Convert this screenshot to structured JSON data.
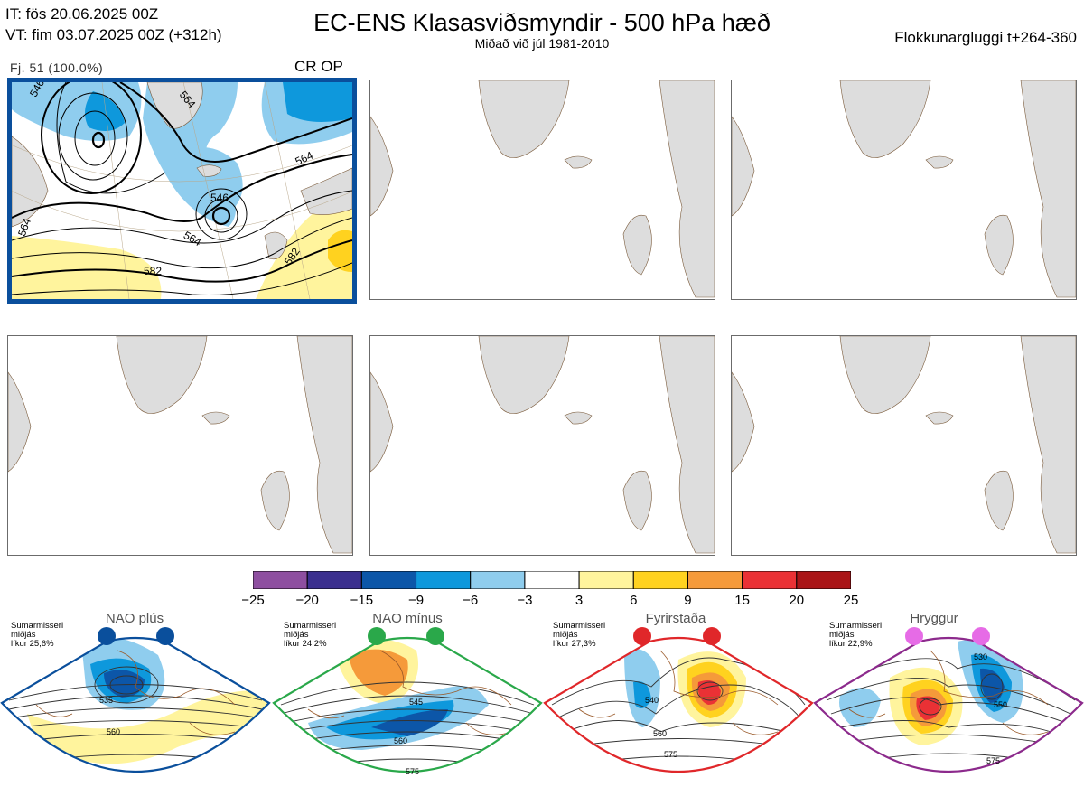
{
  "header": {
    "init_time": "IT: fös 20.06.2025 00Z",
    "valid_time": "VT: fim 03.07.2025 00Z  (+312h)",
    "title": "EC-ENS Klasasviðsmyndir - 500 hPa hæð",
    "subtitle": "Miðað við júl 1981-2010",
    "window": "Flokkunargluggi t+264-360"
  },
  "panel1": {
    "members": "Fj. 51 (100.0%)",
    "tag": "CR OP",
    "contour_labels": [
      "546",
      "564",
      "546",
      "564",
      "564",
      "564",
      "582",
      "582"
    ]
  },
  "colorbar": {
    "colors": [
      "#8e4fa0",
      "#3b2f8f",
      "#0c56a8",
      "#0e98dc",
      "#8fcdee",
      "#ffffff",
      "#fff49d",
      "#ffd21f",
      "#f59a3a",
      "#ea3135",
      "#aa1417"
    ],
    "ticks": [
      "−25",
      "−20",
      "−15",
      "−9",
      "−6",
      "−3",
      "3",
      "6",
      "9",
      "15",
      "20",
      "25"
    ]
  },
  "regimes": [
    {
      "name": "NAO plús",
      "season": "Sumarmisseri",
      "line2": "miðjás",
      "prob": "líkur 25,6%",
      "color": "#0a4f9c",
      "dot": "#0a4f9c",
      "labels": [
        "535",
        "560"
      ]
    },
    {
      "name": "NAO mínus",
      "season": "Sumarmisseri",
      "line2": "miðjás",
      "prob": "líkur 24,2%",
      "color": "#2aa84a",
      "dot": "#2aa84a",
      "labels": [
        "545",
        "560",
        "575"
      ]
    },
    {
      "name": "Fyrirstaða",
      "season": "Sumarmisseri",
      "line2": "miðjás",
      "prob": "líkur 27,3%",
      "color": "#e0272a",
      "dot": "#e0272a",
      "labels": [
        "540",
        "560",
        "575"
      ]
    },
    {
      "name": "Hryggur",
      "season": "Sumarmisseri",
      "line2": "miðjás",
      "prob": "líkur 22,9%",
      "color": "#8c2a8c",
      "dot": "#e66be6",
      "labels": [
        "530",
        "550",
        "575"
      ]
    }
  ]
}
